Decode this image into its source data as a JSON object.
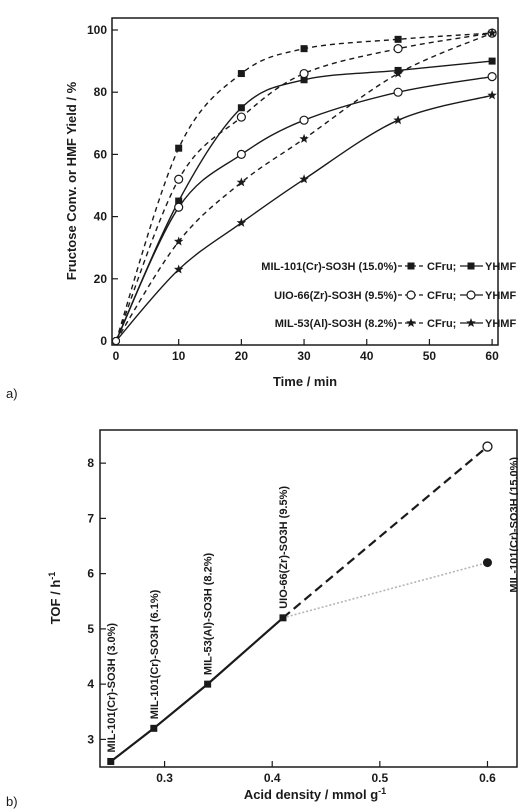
{
  "panel_labels": {
    "a": "a)",
    "b": "b)"
  },
  "chart_data": [
    {
      "type": "scatter",
      "xlabel": "Time / min",
      "ylabel": "Fructose Conv. or HMF Yield / %",
      "xlim": [
        0,
        60
      ],
      "ylim": [
        0,
        100
      ],
      "xticks": [
        "0",
        "10",
        "20",
        "30",
        "40",
        "50",
        "60"
      ],
      "yticks": [
        "0",
        "20",
        "40",
        "60",
        "80",
        "100"
      ],
      "grid": false,
      "legend_position": "bottom-right",
      "legend": [
        {
          "catalyst": "MIL-101(Cr)-SO3H (15.0%)",
          "conv": "CFru;",
          "yield": "YHMF"
        },
        {
          "catalyst": "UIO-66(Zr)-SO3H (9.5%)",
          "conv": "CFru;",
          "yield": "YHMF"
        },
        {
          "catalyst": "MIL-53(Al)-SO3H (8.2%)",
          "conv": "CFru;",
          "yield": "YHMF"
        }
      ],
      "series": [
        {
          "marker": "square",
          "line": "dashed",
          "x": [
            0,
            10,
            20,
            30,
            45,
            60
          ],
          "y": [
            0,
            62,
            86,
            94,
            97,
            99
          ]
        },
        {
          "marker": "square",
          "line": "solid",
          "x": [
            0,
            10,
            20,
            30,
            45,
            60
          ],
          "y": [
            0,
            45,
            75,
            84,
            87,
            90
          ]
        },
        {
          "marker": "circle",
          "line": "dashed",
          "x": [
            0,
            10,
            20,
            30,
            45,
            60
          ],
          "y": [
            0,
            52,
            72,
            86,
            94,
            99
          ]
        },
        {
          "marker": "circle",
          "line": "solid",
          "x": [
            0,
            10,
            20,
            30,
            45,
            60
          ],
          "y": [
            0,
            43,
            60,
            71,
            80,
            85
          ]
        },
        {
          "marker": "star",
          "line": "dashed",
          "x": [
            0,
            10,
            20,
            30,
            45,
            60
          ],
          "y": [
            0,
            32,
            51,
            65,
            86,
            99
          ]
        },
        {
          "marker": "star",
          "line": "solid",
          "x": [
            0,
            10,
            20,
            30,
            45,
            60
          ],
          "y": [
            0,
            23,
            38,
            52,
            71,
            79
          ]
        }
      ]
    },
    {
      "type": "line",
      "xlabel": "Acid density / mmol g",
      "xlabel_sup": "-1",
      "ylabel": "TOF / h",
      "ylabel_sup": "-1",
      "xlim": [
        0.24,
        0.62
      ],
      "ylim": [
        2.5,
        8.6
      ],
      "xticks": [
        "0.3",
        "0.4",
        "0.5",
        "0.6"
      ],
      "yticks": [
        "3",
        "4",
        "5",
        "6",
        "7",
        "8"
      ],
      "grid": false,
      "main_series": {
        "x": [
          0.25,
          0.29,
          0.34,
          0.41
        ],
        "y": [
          2.6,
          3.2,
          4.0,
          5.2
        ]
      },
      "labels": [
        "MIL-101(Cr)-SO3H (3.0%)",
        "MIL-101(Cr)-SO3H (6.1%)",
        "MIL-53(Al)-SO3H (8.2%)",
        "UIO-66(Zr)-SO3H (9.5%)",
        "MIL-101(Cr)-SO3H (15.0%)"
      ],
      "branch_open": {
        "line": "dashed",
        "x": [
          0.41,
          0.6
        ],
        "y": [
          5.2,
          8.3
        ]
      },
      "branch_filled": {
        "line": "dotted",
        "x": [
          0.41,
          0.6
        ],
        "y": [
          5.2,
          6.2
        ]
      }
    }
  ]
}
